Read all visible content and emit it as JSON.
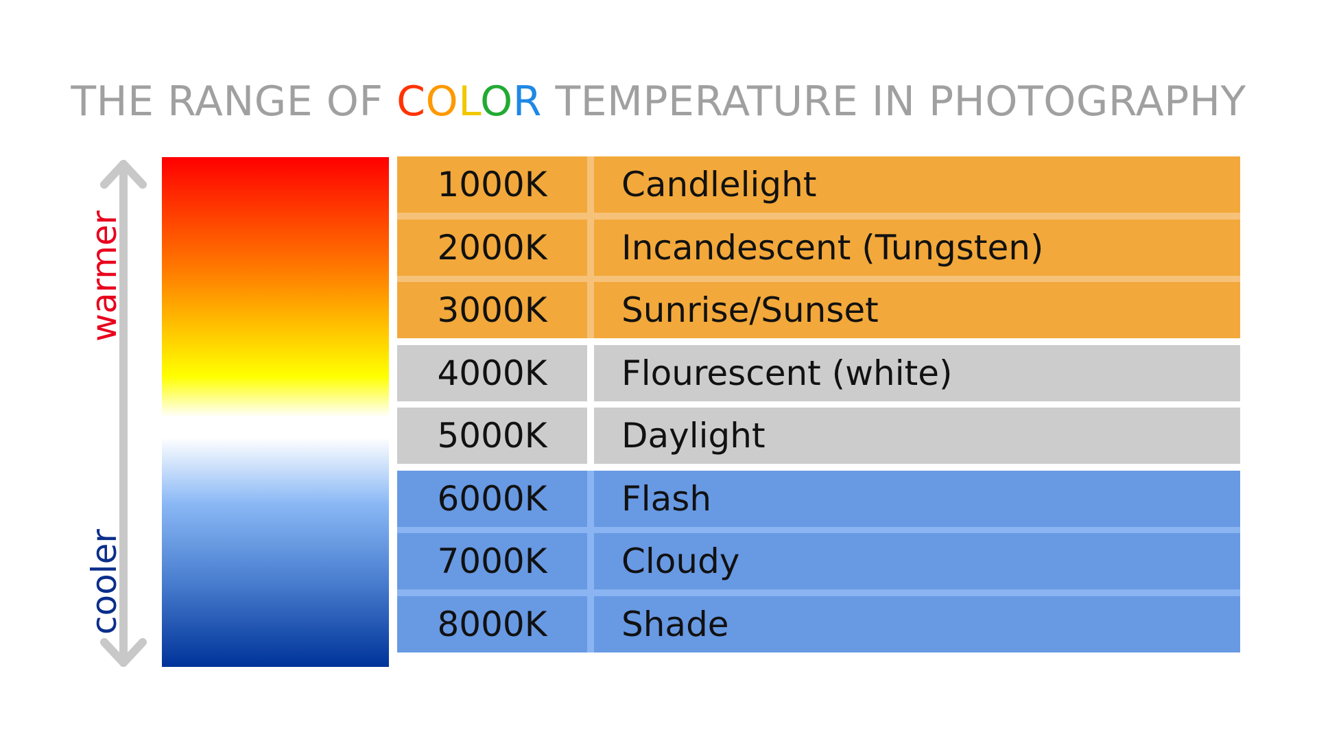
{
  "title": {
    "part1": "THE RANGE OF ",
    "color_letters": [
      {
        "char": "C",
        "color": "#ff3300"
      },
      {
        "char": "O",
        "color": "#ff9900"
      },
      {
        "char": "L",
        "color": "#f0c800"
      },
      {
        "char": "O",
        "color": "#22aa33"
      },
      {
        "char": "R",
        "color": "#1e88e5"
      }
    ],
    "part2": " TEMPERATURE IN PHOTOGRAPHY",
    "color": "#a0a0a0"
  },
  "scale": {
    "warm_label": "warmer",
    "cool_label": "cooler",
    "warm_color": "#e8001c",
    "cool_color": "#0a2e8a",
    "arrow_color": "#c8c8c8",
    "arrow_icon": "double-headed-vertical-arrow-icon"
  },
  "colors": {
    "warm_row": "#f2a83a",
    "neutral_row": "#cccccc",
    "cool_row": "#6899e3",
    "warm_divider": "#f6c27a",
    "cool_divider": "#8ab4f2"
  },
  "rows": [
    {
      "temp": "1000K",
      "source": "Candlelight",
      "group": "warm"
    },
    {
      "temp": "2000K",
      "source": "Incandescent (Tungsten)",
      "group": "warm"
    },
    {
      "temp": "3000K",
      "source": "Sunrise/Sunset",
      "group": "warm"
    },
    {
      "temp": "4000K",
      "source": "Flourescent (white)",
      "group": "neutral"
    },
    {
      "temp": "5000K",
      "source": "Daylight",
      "group": "neutral"
    },
    {
      "temp": "6000K",
      "source": "Flash",
      "group": "cool"
    },
    {
      "temp": "7000K",
      "source": "Cloudy",
      "group": "cool"
    },
    {
      "temp": "8000K",
      "source": "Shade",
      "group": "cool"
    }
  ]
}
